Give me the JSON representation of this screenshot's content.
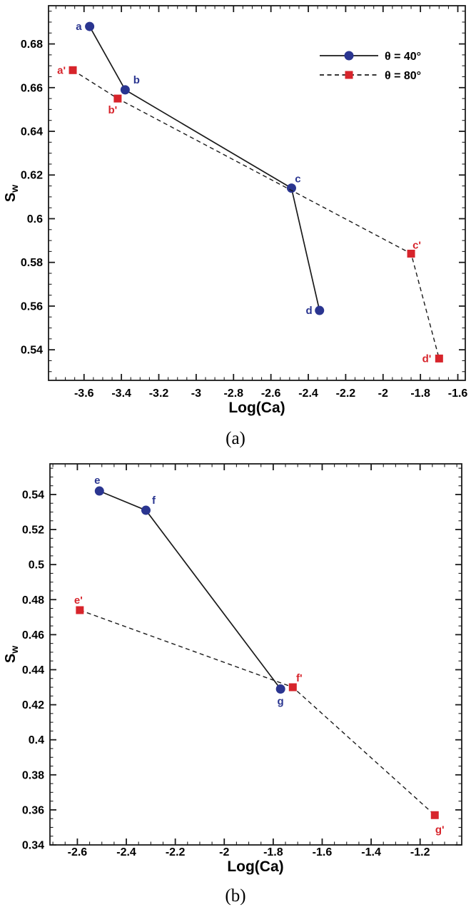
{
  "figure": {
    "description": "Two-panel scatter/line figure of water saturation Sw versus Log(Ca) for two contact angles",
    "background": "#ffffff"
  },
  "colors": {
    "series_theta40": "#2A3590",
    "series_theta80": "#D7242B",
    "line": "#1A1A1A",
    "text": "#000000"
  },
  "chart_data": [
    {
      "id": "a",
      "type": "line",
      "caption": "(a)",
      "xlabel": "Log(Ca)",
      "ylabel": "Sw",
      "ylabel_base": "S",
      "ylabel_sub": "w",
      "xlim": [
        -3.79,
        -1.56
      ],
      "ylim": [
        0.526,
        0.6975
      ],
      "grid": false,
      "x_major_ticks": [
        -3.6,
        -3.4,
        -3.2,
        -3,
        -2.8,
        -2.6,
        -2.4,
        -2.2,
        -2,
        -1.8,
        -1.6
      ],
      "x_tick_labels": [
        "-3.6",
        "-3.4",
        "-3.2",
        "-3",
        "-2.8",
        "-2.6",
        "-2.4",
        "-2.2",
        "-2",
        "-1.8",
        "-1.6"
      ],
      "x_minor_step": 0.05,
      "y_major_ticks": [
        0.54,
        0.56,
        0.58,
        0.6,
        0.62,
        0.64,
        0.66,
        0.68
      ],
      "y_tick_labels": [
        "0.54",
        "0.56",
        "0.58",
        "0.6",
        "0.62",
        "0.64",
        "0.66",
        "0.68"
      ],
      "y_minor_step": 0.005,
      "legend": {
        "position": "upper-right",
        "items": [
          {
            "label": "θ = 40°",
            "series": "theta-40"
          },
          {
            "label": "θ = 80°",
            "series": "theta-80"
          }
        ]
      },
      "series": [
        {
          "name": "theta-40",
          "label": "θ = 40°",
          "color_key": "series_theta40",
          "marker": "circle",
          "line_style": "solid",
          "points": [
            {
              "label": "a",
              "x": -3.57,
              "y": 0.688,
              "anchor": "end",
              "dx": -11,
              "dy": 5
            },
            {
              "label": "b",
              "x": -3.38,
              "y": 0.659,
              "anchor": "middle",
              "dx": 16,
              "dy": -9
            },
            {
              "label": "c",
              "x": -2.49,
              "y": 0.614,
              "anchor": "middle",
              "dx": 9,
              "dy": -8
            },
            {
              "label": "d",
              "x": -2.34,
              "y": 0.558,
              "anchor": "end",
              "dx": -10,
              "dy": 5
            }
          ]
        },
        {
          "name": "theta-80",
          "label": "θ = 80°",
          "color_key": "series_theta80",
          "marker": "square",
          "line_style": "dashed",
          "points": [
            {
              "label": "a'",
              "x": -3.66,
              "y": 0.668,
              "anchor": "end",
              "dx": -10,
              "dy": 5
            },
            {
              "label": "b'",
              "x": -3.42,
              "y": 0.655,
              "anchor": "middle",
              "dx": -7,
              "dy": 21
            },
            {
              "label": "c'",
              "x": -1.85,
              "y": 0.584,
              "anchor": "middle",
              "dx": 8,
              "dy": -7
            },
            {
              "label": "d'",
              "x": -1.7,
              "y": 0.536,
              "anchor": "end",
              "dx": -11,
              "dy": 5
            }
          ]
        }
      ]
    },
    {
      "id": "b",
      "type": "line",
      "caption": "(b)",
      "xlabel": "Log(Ca)",
      "ylabel": "Sw",
      "ylabel_base": "S",
      "ylabel_sub": "w",
      "xlim": [
        -2.712,
        -1.03
      ],
      "ylim": [
        0.34,
        0.5575
      ],
      "grid": false,
      "x_major_ticks": [
        -2.6,
        -2.4,
        -2.2,
        -2,
        -1.8,
        -1.6,
        -1.4,
        -1.2
      ],
      "x_tick_labels": [
        "-2.6",
        "-2.4",
        "-2.2",
        "-2",
        "-1.8",
        "-1.6",
        "-1.4",
        "-1.2"
      ],
      "x_minor_step": 0.05,
      "y_major_ticks": [
        0.34,
        0.36,
        0.38,
        0.4,
        0.42,
        0.44,
        0.46,
        0.48,
        0.5,
        0.52,
        0.54
      ],
      "y_tick_labels": [
        "0.34",
        "0.36",
        "0.38",
        "0.4",
        "0.42",
        "0.44",
        "0.46",
        "0.48",
        "0.5",
        "0.52",
        "0.54"
      ],
      "y_minor_step": 0.005,
      "series": [
        {
          "name": "theta-40",
          "label": "θ = 40°",
          "color_key": "series_theta40",
          "marker": "circle",
          "line_style": "solid",
          "points": [
            {
              "label": "e",
              "x": -2.51,
              "y": 0.542,
              "anchor": "middle",
              "dx": -3,
              "dy": -10
            },
            {
              "label": "f",
              "x": -2.32,
              "y": 0.531,
              "anchor": "middle",
              "dx": 11,
              "dy": -9
            },
            {
              "label": "g",
              "x": -1.77,
              "y": 0.429,
              "anchor": "middle",
              "dx": 0,
              "dy": 22
            }
          ]
        },
        {
          "name": "theta-80",
          "label": "θ = 80°",
          "color_key": "series_theta80",
          "marker": "square",
          "line_style": "dashed",
          "points": [
            {
              "label": "e'",
              "x": -2.59,
              "y": 0.474,
              "anchor": "middle",
              "dx": -2,
              "dy": -9
            },
            {
              "label": "f'",
              "x": -1.72,
              "y": 0.43,
              "anchor": "middle",
              "dx": 9,
              "dy": -8
            },
            {
              "label": "g'",
              "x": -1.14,
              "y": 0.357,
              "anchor": "middle",
              "dx": 7,
              "dy": 25
            }
          ]
        }
      ]
    }
  ]
}
